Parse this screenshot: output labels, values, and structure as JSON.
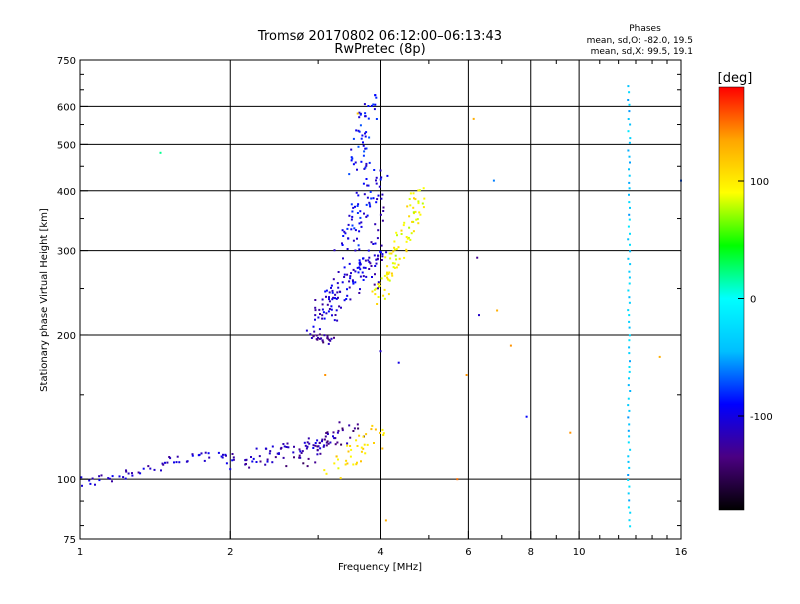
{
  "chart_data": {
    "type": "scatter",
    "title": "Tromsø 20170802 06:12:00–06:13:43",
    "subtitle": "RwPretec (8p)",
    "xlabel": "Frequency [MHz]",
    "ylabel": "Stationary phase Virtual Height [km]",
    "x_scale": "log",
    "y_scale": "log",
    "xlim": [
      1,
      16
    ],
    "ylim": [
      75,
      750
    ],
    "x_ticks": [
      1,
      2,
      4,
      6,
      8,
      10,
      16
    ],
    "x_tick_labels": [
      "1",
      "2",
      "4",
      "6",
      "8",
      "10",
      "16"
    ],
    "x_gridlines": [
      2,
      4,
      6,
      8,
      10
    ],
    "y_ticks": [
      75,
      100,
      200,
      300,
      400,
      500,
      600,
      750
    ],
    "y_tick_labels": [
      "75",
      "100",
      "200",
      "300",
      "400",
      "500",
      "600",
      "750"
    ],
    "y_gridlines": [
      100,
      200,
      300,
      400,
      500,
      600
    ],
    "grid": true,
    "phase_info": {
      "title": "Phases",
      "line_o": "mean, sd,O: -82.0, 19.5",
      "line_x": "mean, sd,X:  99.5, 19.1"
    },
    "colorbar": {
      "label": "[deg]",
      "min": -180,
      "max": 180,
      "ticks": [
        100,
        0,
        -100
      ],
      "tick_labels": [
        "100",
        "0",
        "-100"
      ],
      "colors": [
        "#000000",
        "#4b0082",
        "#0000ff",
        "#00bfff",
        "#00ffff",
        "#00ff00",
        "#ffff00",
        "#ffa500",
        "#ff0000"
      ]
    },
    "series": [
      {
        "mode": "curve",
        "from": [
          1.0,
          98
        ],
        "to": [
          2.0,
          115
        ],
        "n": 55,
        "phase": -110,
        "jitter": 0.03
      },
      {
        "mode": "curve",
        "from": [
          2.0,
          108
        ],
        "to": [
          3.3,
          122
        ],
        "n": 70,
        "phase": -115,
        "jitter": 0.04
      },
      {
        "mode": "curve",
        "from": [
          2.7,
          110
        ],
        "to": [
          3.6,
          128
        ],
        "n": 40,
        "phase": -130,
        "jitter": 0.05
      },
      {
        "mode": "curve",
        "from": [
          3.2,
          105
        ],
        "to": [
          4.0,
          125
        ],
        "n": 40,
        "phase": 105,
        "jitter": 0.05
      },
      {
        "mode": "curve",
        "from": [
          2.9,
          200
        ],
        "to": [
          3.2,
          195
        ],
        "n": 25,
        "phase": -130,
        "jitter": 0.02
      },
      {
        "mode": "curve",
        "from": [
          3.0,
          215
        ],
        "to": [
          3.9,
          300
        ],
        "n": 120,
        "phase": -105,
        "jitter": 0.06
      },
      {
        "mode": "curve",
        "from": [
          3.4,
          300
        ],
        "to": [
          3.95,
          450
        ],
        "n": 70,
        "phase": -95,
        "jitter": 0.05
      },
      {
        "mode": "curve",
        "from": [
          3.55,
          450
        ],
        "to": [
          3.85,
          625
        ],
        "n": 45,
        "phase": -90,
        "jitter": 0.04
      },
      {
        "mode": "curve",
        "from": [
          3.95,
          235
        ],
        "to": [
          4.85,
          400
        ],
        "n": 90,
        "phase": 95,
        "jitter": 0.04
      },
      {
        "mode": "curve",
        "from": [
          3.9,
          250
        ],
        "to": [
          4.0,
          400
        ],
        "n": 20,
        "phase": -110,
        "jitter": 0.02
      },
      {
        "mode": "curve",
        "from": [
          12.6,
          80
        ],
        "to": [
          12.6,
          660
        ],
        "n": 70,
        "phase": -35,
        "jitter": 0.005
      },
      {
        "mode": "points",
        "x": [
          1.45,
          3.1,
          3.6,
          4.0,
          4.35,
          5.7,
          5.95,
          6.15,
          6.25,
          6.3,
          6.75,
          6.85,
          7.3,
          7.85,
          9.6,
          14.5,
          4.1,
          16.0
        ],
        "y": [
          480,
          165,
          580,
          185,
          175,
          100,
          165,
          565,
          290,
          220,
          420,
          225,
          190,
          135,
          125,
          180,
          82,
          420
        ],
        "phase": [
          20,
          140,
          120,
          -110,
          -100,
          150,
          140,
          130,
          -130,
          -110,
          -60,
          130,
          140,
          -90,
          140,
          130,
          130,
          -70
        ]
      }
    ]
  }
}
